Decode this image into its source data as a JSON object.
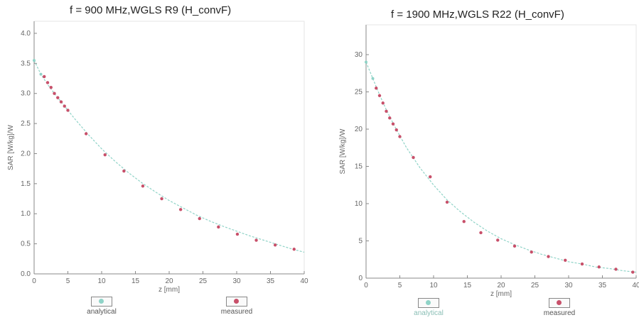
{
  "colors": {
    "analytical": "#8fd3c7",
    "measured": "#c8506a",
    "axis": "#888888",
    "grid": "#e4e4e4"
  },
  "chart_data": [
    {
      "type": "scatter",
      "title": "f = 900 MHz,WGLS R9 (H_convF)",
      "xlabel": "z [mm]",
      "ylabel": "SAR [W/kg]/W",
      "xlim": [
        0,
        40
      ],
      "ylim": [
        0,
        4.2
      ],
      "xticks": [
        "0",
        "5",
        "10",
        "15",
        "20",
        "25",
        "30",
        "35",
        "40"
      ],
      "yticks": [
        "0.0",
        "0.5",
        "1.0",
        "1.5",
        "2.0",
        "2.5",
        "3.0",
        "3.5",
        "4.0"
      ],
      "legend": [
        "analytical",
        "measured"
      ],
      "grid": false,
      "series": [
        {
          "name": "analytical",
          "x": [
            0,
            1,
            2,
            3,
            4,
            5,
            6,
            8,
            10,
            12,
            14,
            16,
            18,
            20,
            22,
            24,
            26,
            28,
            30,
            32,
            34,
            36,
            38,
            40
          ],
          "y": [
            3.55,
            3.32,
            3.15,
            3.0,
            2.86,
            2.72,
            2.58,
            2.32,
            2.08,
            1.87,
            1.68,
            1.51,
            1.36,
            1.22,
            1.1,
            0.98,
            0.88,
            0.79,
            0.71,
            0.63,
            0.56,
            0.49,
            0.42,
            0.36
          ]
        },
        {
          "name": "measured",
          "x": [
            1.5,
            2.0,
            2.5,
            3.0,
            3.5,
            4.0,
            4.5,
            5.0,
            7.7,
            10.5,
            13.3,
            16.1,
            18.9,
            21.7,
            24.5,
            27.3,
            30.1,
            32.9,
            35.7,
            38.5
          ],
          "y": [
            3.28,
            3.18,
            3.1,
            3.0,
            2.93,
            2.86,
            2.79,
            2.72,
            2.33,
            1.98,
            1.71,
            1.46,
            1.25,
            1.07,
            0.92,
            0.78,
            0.66,
            0.56,
            0.48,
            0.41
          ]
        }
      ]
    },
    {
      "type": "scatter",
      "title": "f = 1900 MHz,WGLS R22 (H_convF)",
      "xlabel": "z [mm]",
      "ylabel": "SAR [W/kg]/W",
      "xlim": [
        0,
        40
      ],
      "ylim": [
        0,
        34
      ],
      "xticks": [
        "0",
        "5",
        "10",
        "15",
        "20",
        "25",
        "30",
        "35",
        "40"
      ],
      "yticks": [
        "0",
        "5",
        "10",
        "15",
        "20",
        "25",
        "30"
      ],
      "legend": [
        "analytical",
        "measured"
      ],
      "grid": false,
      "series": [
        {
          "name": "analytical",
          "x": [
            0,
            1,
            2,
            3,
            4,
            5,
            6,
            8,
            10,
            12,
            14,
            16,
            18,
            20,
            22,
            24,
            26,
            28,
            30,
            32,
            34,
            36,
            38,
            40
          ],
          "y": [
            29.0,
            26.8,
            24.6,
            22.6,
            20.8,
            19.1,
            17.5,
            14.8,
            12.5,
            10.5,
            8.9,
            7.5,
            6.3,
            5.3,
            4.5,
            3.8,
            3.2,
            2.7,
            2.2,
            1.9,
            1.5,
            1.3,
            1.0,
            0.8
          ]
        },
        {
          "name": "measured",
          "x": [
            1.5,
            2.0,
            2.5,
            3.0,
            3.5,
            4.0,
            4.5,
            5.0,
            7.0,
            9.5,
            12.0,
            14.5,
            17.0,
            19.5,
            22.0,
            24.5,
            27.0,
            29.5,
            32.0,
            34.5,
            37.0,
            39.5
          ],
          "y": [
            25.5,
            24.5,
            23.5,
            22.4,
            21.5,
            20.7,
            19.9,
            19.0,
            16.2,
            13.6,
            10.2,
            7.6,
            6.1,
            5.1,
            4.3,
            3.5,
            2.9,
            2.4,
            1.9,
            1.5,
            1.2,
            0.8
          ]
        }
      ]
    }
  ]
}
